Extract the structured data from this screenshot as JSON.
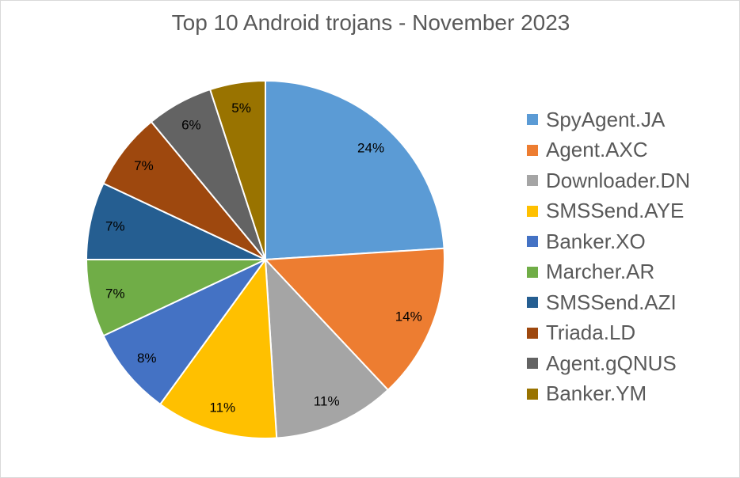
{
  "chart_data": {
    "type": "pie",
    "title": "Top 10 Android trojans - November 2023",
    "categories": [
      "SpyAgent.JA",
      "Agent.AXC",
      "Downloader.DN",
      "SMSSend.AYE",
      "Banker.XO",
      "Marcher.AR",
      "SMSSend.AZI",
      "Triada.LD",
      "Agent.gQNUS",
      "Banker.YM"
    ],
    "values": [
      24,
      14,
      11,
      11,
      8,
      7,
      7,
      7,
      6,
      5
    ],
    "labels": [
      "24%",
      "14%",
      "11%",
      "11%",
      "8%",
      "7%",
      "7%",
      "7%",
      "6%",
      "5%"
    ],
    "colors": [
      "#5B9BD5",
      "#ED7D31",
      "#A5A5A5",
      "#FFC000",
      "#4472C4",
      "#70AD47",
      "#255E91",
      "#9E480E",
      "#636363",
      "#997300"
    ],
    "legend": "right"
  }
}
